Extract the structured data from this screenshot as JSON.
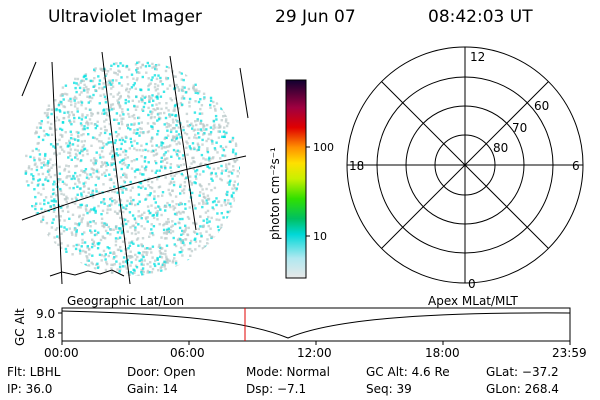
{
  "header": {
    "title": "Ultraviolet Imager",
    "date": "29 Jun 07",
    "time": "08:42:03 UT"
  },
  "colorbar": {
    "unit_label": "photon cm⁻²s⁻¹",
    "tick_100": "100",
    "tick_10": "10"
  },
  "polar": {
    "mlt_top": "12",
    "mlt_left": "18",
    "mlt_right": "6",
    "mlt_bottom": "0",
    "lat_60": "60",
    "lat_70": "70",
    "lat_80": "80"
  },
  "orbit": {
    "left_label": "Geographic Lat/Lon",
    "right_label": "Apex  MLat/MLT",
    "ylabel": "GC Alt",
    "ytick_top": "9.0",
    "ytick_bottom": "1.8",
    "xticks": [
      "00:00",
      "06:00",
      "12:00",
      "18:00",
      "23:59"
    ],
    "marker_color": "#e00000"
  },
  "info": {
    "flt": "Flt: LBHL",
    "door": "Door: Open",
    "mode": "Mode: Normal",
    "gc_alt": "GC Alt: 4.6 Re",
    "glat": "GLat: −37.2",
    "ip": "IP: 36.0",
    "gain": "Gain: 14",
    "dsp": "Dsp:   −7.1",
    "seq": "Seq: 39",
    "glon": "GLon: 268.4"
  },
  "image_colors": {
    "speckle_primary": "#00e0e0",
    "speckle_secondary": "#b8c8c8"
  }
}
